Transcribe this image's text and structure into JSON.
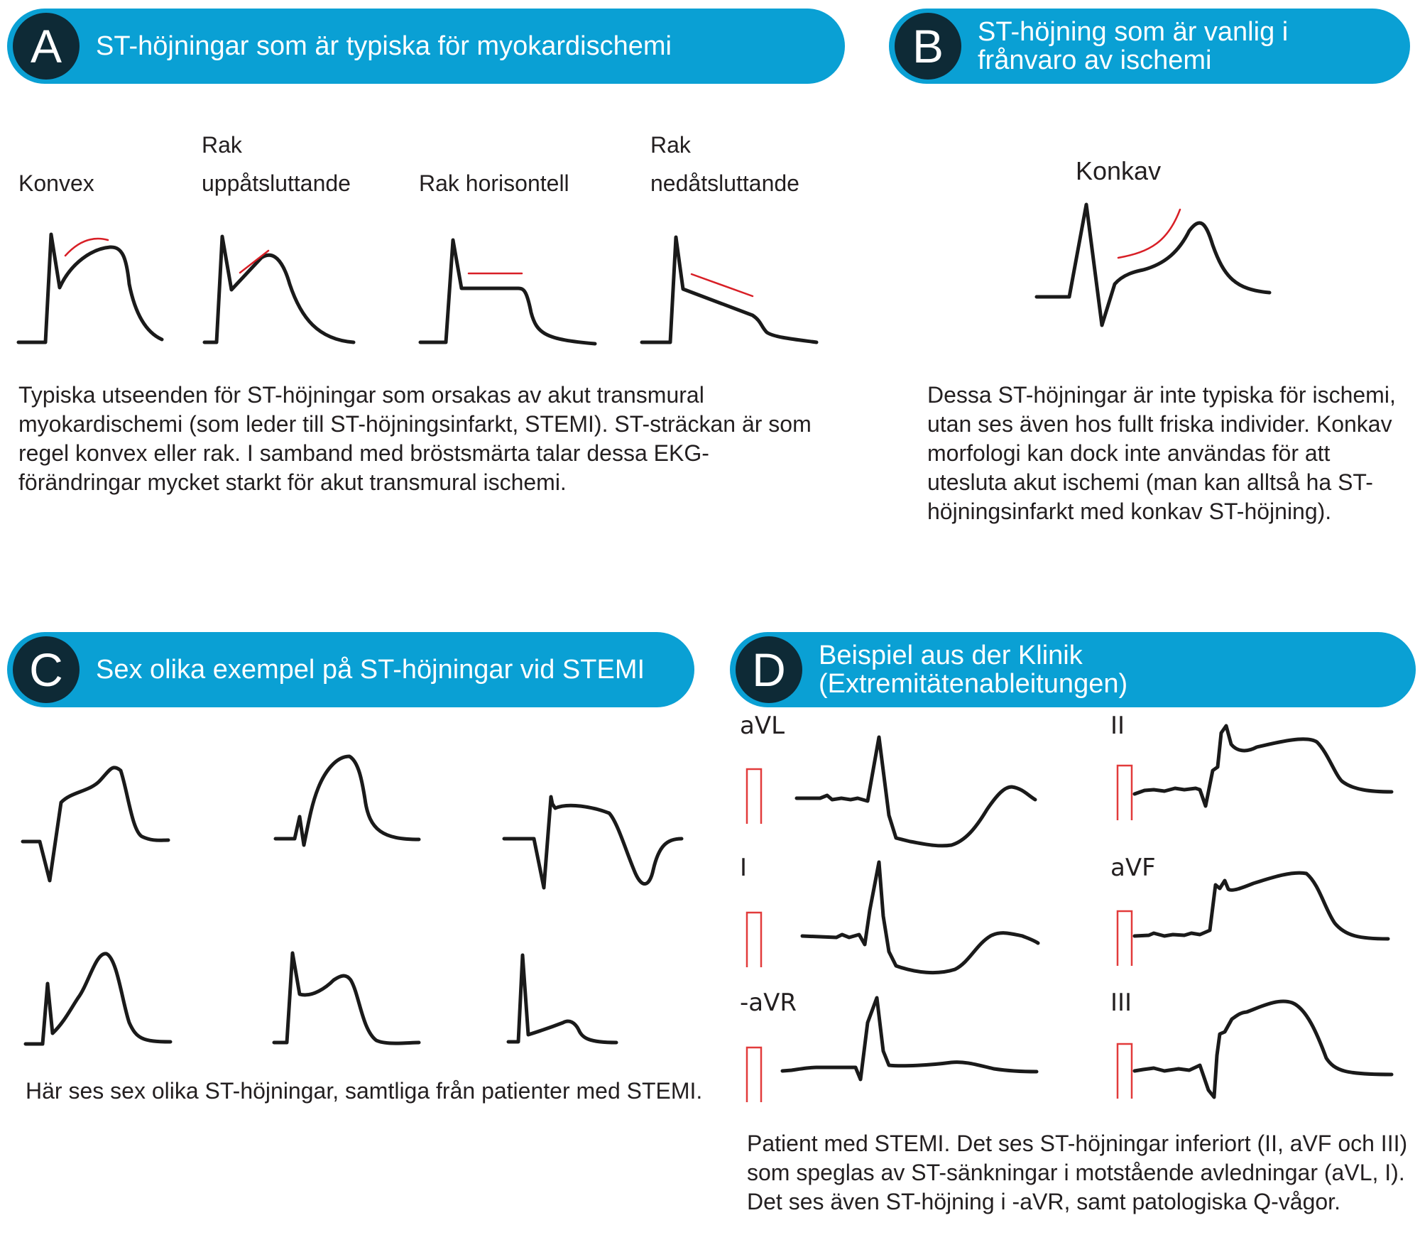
{
  "colors": {
    "banner": "#0aa0d4",
    "badge": "#0e2a36",
    "st_line": "#d81f26",
    "trace": "#1a1a1a",
    "calibration": "#e23b3b"
  },
  "panel_a": {
    "badge": "A",
    "title": "ST-höjningar som är typiska för myokardischemi",
    "labels": [
      "Konvex",
      "Rak\nuppåtsluttande",
      "Rak horisontell",
      "Rak\nnedåtsluttande"
    ],
    "description": "Typiska utseenden för ST-höjningar som orsakas av akut transmural myokardischemi (som leder till ST-höjningsinfarkt, STEMI). ST-sträckan är som regel konvex eller rak. I samband med bröstsmärta talar dessa EKG-förändringar mycket starkt för akut transmural ischemi."
  },
  "panel_b": {
    "badge": "B",
    "title": "ST-höjning som är vanlig i\nfrånvaro av ischemi",
    "label": "Konkav",
    "description": "Dessa ST-höjningar är inte typiska för ischemi, utan ses även hos fullt friska individer. Konkav morfologi kan dock inte användas för att utesluta akut ischemi (man kan alltså ha ST-höjningsinfarkt med konkav ST-höjning)."
  },
  "panel_c": {
    "badge": "C",
    "title": "Sex olika exempel på ST-höjningar vid STEMI",
    "description": "Här ses sex olika ST-höjningar, samtliga från patienter med STEMI."
  },
  "panel_d": {
    "badge": "D",
    "title": "Beispiel aus der Klinik\n(Extremitätenableitungen)",
    "leads_left": [
      "aVL",
      "I",
      "-aVR"
    ],
    "leads_right": [
      "II",
      "aVF",
      "III"
    ],
    "description": "Patient med STEMI. Det ses ST-höjningar inferiort (II, aVF och III) som speglas av ST-sänkningar i motstående avledningar (aVL, I). Det ses även ST-höjning i -aVR, samt patologiska Q-vågor."
  }
}
